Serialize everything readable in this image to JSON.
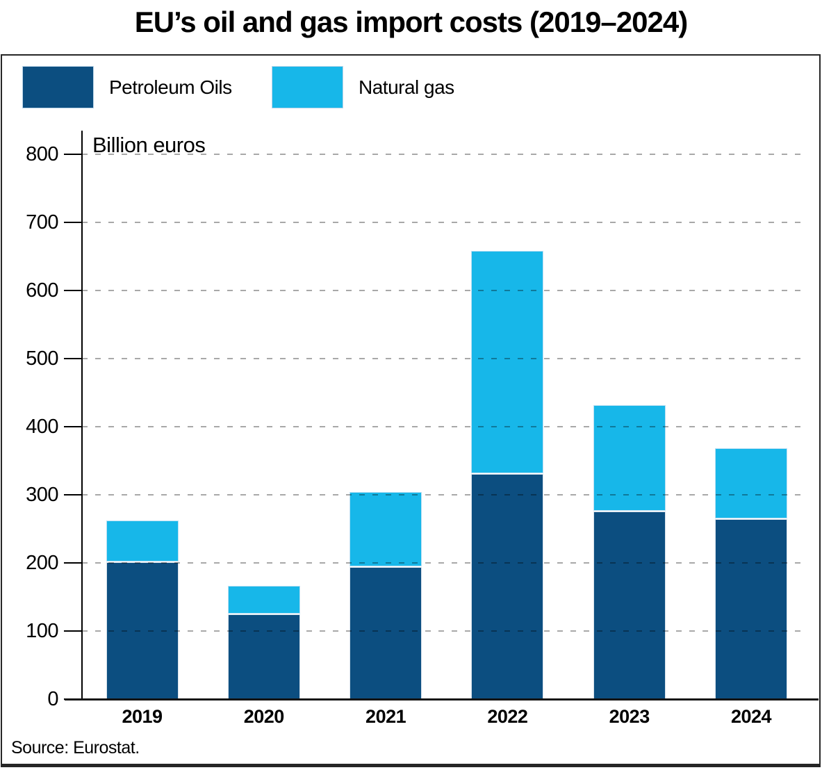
{
  "title": "EU’s oil and gas import costs (2019–2024)",
  "legend": {
    "items": [
      {
        "label": "Petroleum Oils",
        "color": "#0C4E80"
      },
      {
        "label": "Natural gas",
        "color": "#17B7E9"
      }
    ]
  },
  "source": "Source: Eurostat.",
  "colors": {
    "petroleum": "#0C4E80",
    "natural_gas": "#17B7E9",
    "frame_border": "#262626",
    "gridline": "#ABABAB",
    "background": "#FFFFFF",
    "text": "#000000"
  },
  "chart_data": {
    "type": "bar",
    "stacked": true,
    "title": "EU’s oil and gas import costs (2019–2024)",
    "ylabel": "Billion euros",
    "xlabel": "",
    "categories": [
      "2019",
      "2020",
      "2021",
      "2022",
      "2023",
      "2024"
    ],
    "series": [
      {
        "name": "Petroleum Oils",
        "color": "#0C4E80",
        "values": [
          200,
          123,
          193,
          330,
          274,
          263
        ]
      },
      {
        "name": "Natural gas",
        "color": "#17B7E9",
        "values": [
          58,
          39,
          107,
          324,
          154,
          101
        ]
      }
    ],
    "stack_totals": [
      258,
      162,
      300,
      654,
      428,
      364
    ],
    "yticks": [
      0,
      100,
      200,
      300,
      400,
      500,
      600,
      700,
      800
    ],
    "ylim": [
      0,
      835
    ],
    "grid": "dashed-horizontal-over-bars",
    "legend_position": "top-left"
  }
}
